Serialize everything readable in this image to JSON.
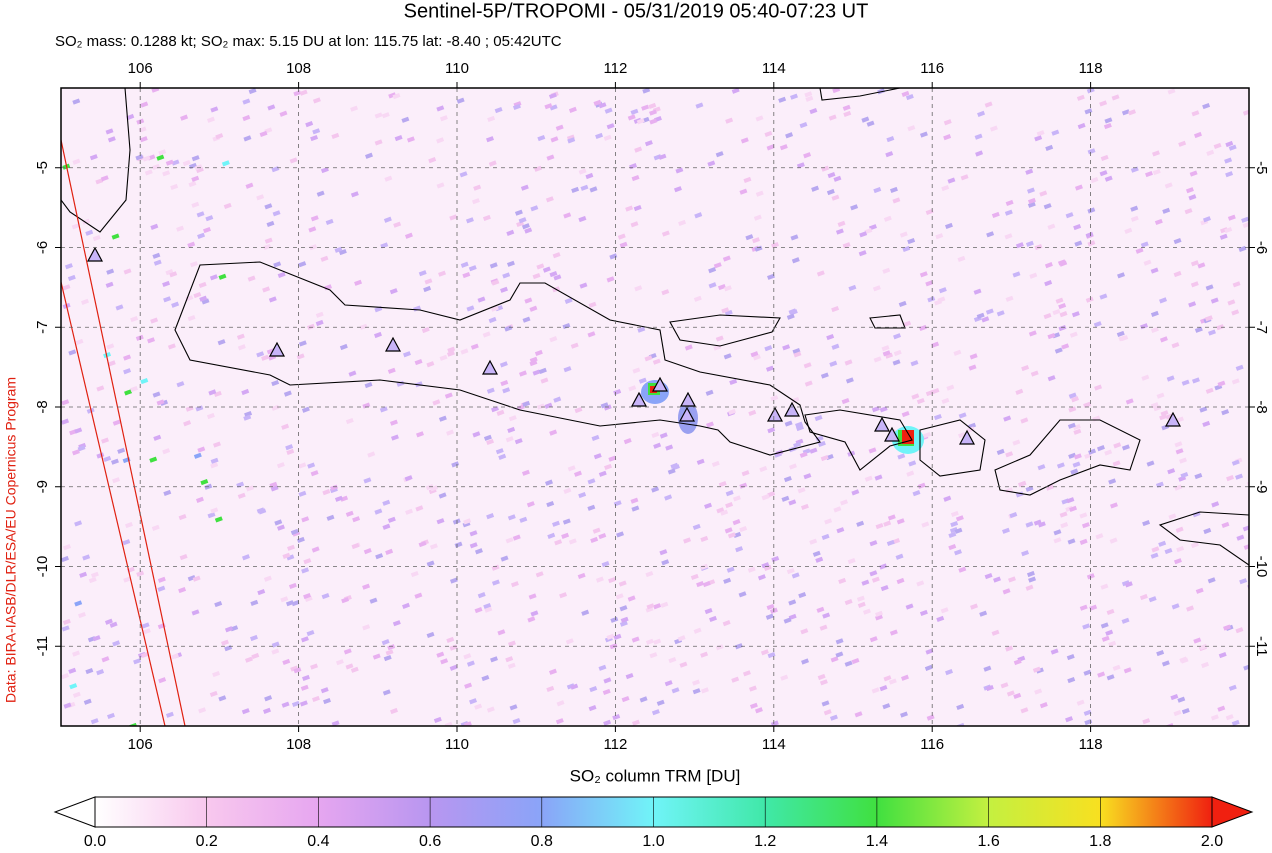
{
  "header": {
    "title": "Sentinel-5P/TROPOMI - 05/31/2019 05:40-07:23 UT",
    "subtitle": "SO₂ mass: 0.1288 kt; SO₂ max: 5.15 DU at lon: 115.75 lat: -8.40 ; 05:42UTC"
  },
  "map": {
    "credit": "Data: BIRA-IASB/DLR/ESA/EU Copernicus Program",
    "xlim": [
      105,
      120
    ],
    "ylim": [
      -12,
      -4
    ],
    "xticks": [
      106,
      108,
      110,
      112,
      114,
      116,
      118
    ],
    "yticks": [
      -5,
      -6,
      -7,
      -8,
      -9,
      -10,
      -11
    ],
    "grid": true
  },
  "colorbar": {
    "label": "SO₂ column TRM [DU]",
    "lim": [
      0,
      2
    ],
    "ticks": [
      {
        "value": 0,
        "label": "0.0"
      },
      0.2,
      0.4,
      0.6,
      0.8,
      {
        "value": 1,
        "label": "1.0"
      },
      1.2,
      1.4,
      1.6,
      1.8,
      {
        "value": 2,
        "label": "2.0"
      }
    ]
  }
}
